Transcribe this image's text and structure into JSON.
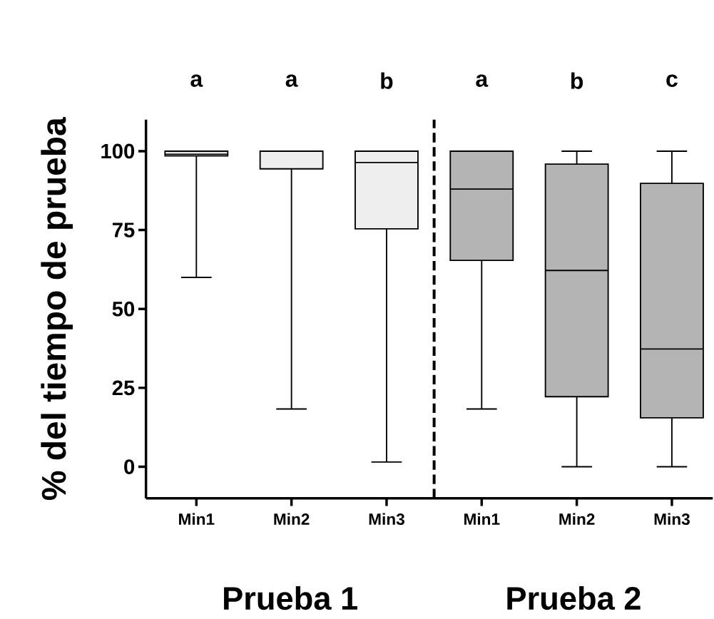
{
  "chart_data": {
    "type": "box",
    "ylabel": "% del tiempo de prueba",
    "categories": [
      "Min1",
      "Min2",
      "Min3",
      "Min1",
      "Min2",
      "Min3"
    ],
    "boxes": [
      {
        "low": 60,
        "q1": 98.5,
        "median": 99,
        "q3": 100,
        "high": 100
      },
      {
        "low": 18.3,
        "q1": 94.4,
        "median": 100,
        "q3": 100,
        "high": 100
      },
      {
        "low": 1.5,
        "q1": 75.4,
        "median": 96.4,
        "q3": 100,
        "high": 100
      },
      {
        "low": 18.3,
        "q1": 65.4,
        "median": 88,
        "q3": 100,
        "high": 100
      },
      {
        "low": 0,
        "q1": 22.2,
        "median": 62.2,
        "q3": 95.9,
        "high": 100
      },
      {
        "low": 0,
        "q1": 15.5,
        "median": 37.3,
        "q3": 89.8,
        "high": 100
      }
    ],
    "colors": [
      "#e6e6e6",
      "#eeeeee",
      "#eeeeee",
      "#b4b4b4",
      "#b4b4b4",
      "#b4b4b4"
    ],
    "ylim": [
      -10,
      110
    ],
    "yticks": [
      0,
      25,
      50,
      75,
      100
    ],
    "annotations": [
      "a",
      "a",
      "b",
      "a",
      "b",
      "c",
      "Prueba 1",
      "Prueba 2"
    ],
    "grid": false
  }
}
